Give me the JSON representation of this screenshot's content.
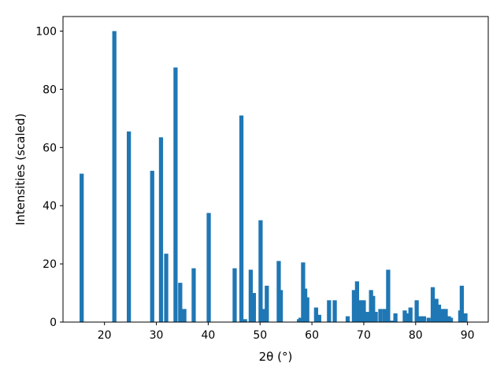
{
  "chart_data": {
    "type": "bar",
    "xlabel": "2θ (°)",
    "ylabel": "Intensities (scaled)",
    "xlim": [
      12,
      94
    ],
    "ylim": [
      0,
      105
    ],
    "xticks": [
      20,
      30,
      40,
      50,
      60,
      70,
      80,
      90
    ],
    "yticks": [
      0,
      20,
      40,
      60,
      80,
      100
    ],
    "bar_color": "#1f77b4",
    "bar_width": 0.8,
    "x": [
      15.6,
      21.9,
      24.7,
      29.2,
      30.9,
      31.9,
      33.7,
      34.6,
      35.4,
      37.2,
      40.1,
      45.1,
      46.4,
      47.1,
      48.2,
      48.8,
      50.1,
      50.8,
      51.3,
      53.6,
      54.0,
      57.5,
      57.8,
      58.3,
      58.7,
      59.1,
      60.8,
      61.4,
      63.3,
      64.4,
      66.9,
      68.1,
      68.7,
      69.4,
      70.0,
      70.7,
      71.4,
      71.8,
      72.3,
      73.2,
      74.0,
      74.7,
      75.3,
      76.1,
      77.9,
      78.4,
      79.0,
      80.2,
      80.9,
      81.6,
      82.5,
      83.3,
      84.0,
      84.5,
      85.1,
      85.8,
      86.4,
      86.8,
      88.6,
      88.9,
      89.6
    ],
    "values": [
      51,
      100,
      65.5,
      52,
      63.5,
      23.5,
      87.5,
      13.5,
      4.5,
      18.5,
      37.5,
      18.5,
      71,
      1,
      18,
      10,
      35,
      4.5,
      12.5,
      21,
      11,
      1,
      1.5,
      20.5,
      11.5,
      8.5,
      5,
      2.5,
      7.5,
      7.5,
      2,
      11,
      14,
      7.5,
      7.5,
      3.5,
      11,
      9,
      3.5,
      4.5,
      4.5,
      18,
      0.5,
      3,
      4,
      3,
      5,
      7.5,
      2,
      2,
      1.5,
      12,
      8,
      6,
      4.5,
      4.5,
      2,
      1.5,
      4,
      12.5,
      3
    ]
  }
}
